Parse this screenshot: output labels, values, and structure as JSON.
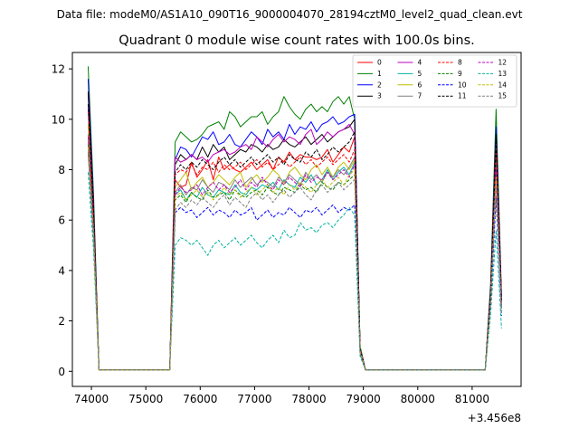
{
  "chart_data": {
    "type": "line",
    "suptitle": "Data file: modeM0/AS1A10_090T16_9000004070_28194cztM0_level2_quad_clean.evt",
    "title": "Quadrant 0 module wise count rates with 100.0s bins.",
    "xlabel": "",
    "ylabel": "",
    "x_offset_label": "+3.456e8",
    "xlim": [
      73650,
      81900
    ],
    "ylim": [
      -0.6,
      12.65
    ],
    "x_ticks": [
      74000,
      75000,
      76000,
      77000,
      78000,
      79000,
      80000,
      81000
    ],
    "x_tick_labels": [
      "74000",
      "75000",
      "76000",
      "77000",
      "78000",
      "79000",
      "80000",
      "81000"
    ],
    "y_ticks": [
      0,
      2,
      4,
      6,
      8,
      10,
      12
    ],
    "y_tick_labels": [
      "0",
      "2",
      "4",
      "6",
      "8",
      "10",
      "12"
    ],
    "legend_position": "top-right",
    "grid": false,
    "segments_x": [
      [
        73940,
        74040,
        74140
      ],
      [
        75440,
        75540,
        75640,
        75740,
        75840,
        75940,
        76040,
        76140,
        76240,
        76340,
        76440,
        76540,
        76640,
        76740,
        76840,
        76940,
        77040,
        77140,
        77240,
        77340,
        77440,
        77540,
        77640,
        77740,
        77840,
        77940,
        78040,
        78140,
        78240,
        78340,
        78440,
        78540,
        78640,
        78740,
        78840
      ],
      [
        78940,
        79040
      ],
      [
        81240,
        81340,
        81440,
        81540
      ]
    ],
    "gaps_zero": [
      [
        74140,
        75440
      ],
      [
        79040,
        81240
      ]
    ],
    "series": [
      {
        "name": "0",
        "color": "#ff0000",
        "dash": "solid",
        "values": [
          [
            11.0,
            6.5,
            0.05
          ],
          [
            0.05,
            7.6,
            7.3,
            7.4,
            8.3,
            7.7,
            8.0,
            8.4,
            7.6,
            8.5,
            8.0,
            8.2,
            8.0,
            7.9,
            8.1,
            8.3,
            8.0,
            8.2,
            8.4,
            8.0,
            8.5,
            8.3,
            8.7,
            8.4,
            8.6,
            8.5,
            8.5,
            8.4,
            8.5,
            8.8,
            8.3,
            8.6,
            8.9,
            8.7,
            9.3
          ],
          [
            0.9,
            0.05
          ],
          [
            0.05,
            3.2,
            9.0,
            2.8
          ]
        ]
      },
      {
        "name": "1",
        "color": "#008000",
        "dash": "solid",
        "values": [
          [
            12.1,
            7.0,
            0.05
          ],
          [
            0.05,
            9.1,
            9.5,
            9.3,
            9.1,
            9.2,
            9.4,
            9.7,
            9.8,
            9.9,
            9.6,
            10.3,
            10.1,
            9.7,
            9.9,
            10.1,
            10.1,
            10.3,
            9.8,
            10.1,
            10.3,
            10.9,
            10.5,
            10.2,
            10.0,
            10.4,
            10.6,
            10.3,
            10.5,
            10.3,
            10.7,
            10.9,
            10.6,
            10.9,
            10.0
          ],
          [
            1.0,
            0.05
          ],
          [
            0.05,
            3.5,
            10.4,
            3.0
          ]
        ]
      },
      {
        "name": "2",
        "color": "#0000ff",
        "dash": "solid",
        "values": [
          [
            11.6,
            6.6,
            0.05
          ],
          [
            0.05,
            8.4,
            8.9,
            8.8,
            8.5,
            8.9,
            9.3,
            9.2,
            9.5,
            9.0,
            9.1,
            9.4,
            9.0,
            8.9,
            9.2,
            9.5,
            9.3,
            9.0,
            9.6,
            9.3,
            9.5,
            9.2,
            9.8,
            9.4,
            9.7,
            9.6,
            9.9,
            9.5,
            9.8,
            9.9,
            10.1,
            9.8,
            9.9,
            10.1,
            10.2
          ],
          [
            0.9,
            0.05
          ],
          [
            0.05,
            3.3,
            9.7,
            2.9
          ]
        ]
      },
      {
        "name": "3",
        "color": "#000000",
        "dash": "solid",
        "values": [
          [
            11.1,
            6.4,
            0.05
          ],
          [
            0.05,
            8.2,
            8.6,
            8.4,
            8.6,
            8.4,
            8.9,
            8.5,
            9.0,
            8.7,
            8.9,
            8.4,
            8.6,
            8.8,
            8.7,
            9.0,
            8.9,
            8.7,
            9.0,
            8.8,
            8.9,
            9.2,
            9.0,
            8.9,
            9.1,
            9.3,
            9.0,
            9.2,
            9.4,
            9.1,
            9.3,
            9.5,
            9.6,
            9.7,
            10.0
          ],
          [
            0.9,
            0.05
          ],
          [
            0.05,
            3.2,
            9.4,
            2.8
          ]
        ]
      },
      {
        "name": "4",
        "color": "#bf00bf",
        "dash": "solid",
        "values": [
          [
            10.5,
            6.2,
            0.05
          ],
          [
            0.05,
            8.5,
            8.3,
            8.4,
            8.6,
            8.4,
            8.5,
            8.3,
            8.6,
            8.7,
            8.8,
            8.6,
            8.7,
            8.9,
            9.0,
            8.8,
            9.3,
            9.1,
            8.9,
            9.2,
            9.4,
            9.1,
            9.3,
            9.2,
            9.0,
            9.4,
            9.6,
            9.0,
            9.2,
            9.5,
            9.3,
            9.5,
            9.6,
            9.8,
            9.4
          ],
          [
            0.9,
            0.05
          ],
          [
            0.05,
            3.0,
            9.0,
            2.7
          ]
        ]
      },
      {
        "name": "5",
        "color": "#00b3a1",
        "dash": "solid",
        "values": [
          [
            9.2,
            5.7,
            0.05
          ],
          [
            0.05,
            7.0,
            7.2,
            6.8,
            7.1,
            6.9,
            7.3,
            7.0,
            6.9,
            7.2,
            7.1,
            7.0,
            7.4,
            7.1,
            7.0,
            7.3,
            7.2,
            7.4,
            7.3,
            7.5,
            7.2,
            7.6,
            7.4,
            7.3,
            7.7,
            7.5,
            7.8,
            7.4,
            7.6,
            8.0,
            7.6,
            7.9,
            8.1,
            7.8,
            8.3
          ],
          [
            0.8,
            0.05
          ],
          [
            0.05,
            2.9,
            8.0,
            2.5
          ]
        ]
      },
      {
        "name": "6",
        "color": "#bfbf00",
        "dash": "solid",
        "values": [
          [
            9.8,
            5.9,
            0.05
          ],
          [
            0.05,
            7.3,
            7.6,
            7.9,
            7.2,
            7.5,
            7.7,
            7.3,
            7.5,
            7.8,
            7.6,
            7.4,
            7.7,
            7.9,
            7.3,
            7.6,
            7.8,
            7.5,
            7.7,
            8.0,
            7.8,
            7.4,
            7.9,
            8.1,
            7.8,
            7.6,
            8.0,
            8.2,
            7.8,
            8.1,
            7.7,
            8.1,
            8.3,
            8.0,
            8.4
          ],
          [
            0.8,
            0.05
          ],
          [
            0.05,
            3.0,
            8.7,
            2.6
          ]
        ]
      },
      {
        "name": "7",
        "color": "#808080",
        "dash": "solid",
        "values": [
          [
            9.4,
            5.8,
            0.05
          ],
          [
            0.05,
            7.1,
            7.4,
            7.0,
            7.3,
            7.2,
            7.6,
            7.3,
            7.1,
            7.5,
            7.4,
            7.2,
            7.6,
            7.3,
            7.5,
            7.7,
            7.4,
            7.6,
            7.5,
            7.3,
            7.7,
            7.5,
            7.8,
            7.6,
            7.4,
            7.9,
            7.6,
            7.8,
            7.5,
            7.9,
            7.7,
            8.0,
            7.8,
            8.1,
            8.5
          ],
          [
            0.8,
            0.05
          ],
          [
            0.05,
            2.9,
            8.3,
            2.5
          ]
        ]
      },
      {
        "name": "8",
        "color": "#ff0000",
        "dash": "dashed",
        "values": [
          [
            10.3,
            6.1,
            0.05
          ],
          [
            0.05,
            7.8,
            8.0,
            7.9,
            8.2,
            7.8,
            8.1,
            8.0,
            8.3,
            7.9,
            8.2,
            8.0,
            8.1,
            8.3,
            8.0,
            8.2,
            8.4,
            8.1,
            8.3,
            8.0,
            8.2,
            8.4,
            8.1,
            8.3,
            8.5,
            8.2,
            8.4,
            8.1,
            8.3,
            8.5,
            8.2,
            8.4,
            8.6,
            8.3,
            8.8
          ],
          [
            0.9,
            0.05
          ],
          [
            0.05,
            3.1,
            8.8,
            2.7
          ]
        ]
      },
      {
        "name": "9",
        "color": "#008000",
        "dash": "dashed",
        "values": [
          [
            9.0,
            5.6,
            0.05
          ],
          [
            0.05,
            6.8,
            7.0,
            6.7,
            7.1,
            6.9,
            6.8,
            7.2,
            6.9,
            7.0,
            7.1,
            6.8,
            7.2,
            7.0,
            6.9,
            7.1,
            7.2,
            7.0,
            7.3,
            7.1,
            7.0,
            7.3,
            7.2,
            7.1,
            7.4,
            7.2,
            7.3,
            7.1,
            7.5,
            7.3,
            7.2,
            7.5,
            7.4,
            7.6,
            7.8
          ],
          [
            0.8,
            0.05
          ],
          [
            0.05,
            2.8,
            7.6,
            2.4
          ]
        ]
      },
      {
        "name": "10",
        "color": "#0000ff",
        "dash": "dashed",
        "values": [
          [
            8.7,
            5.3,
            0.05
          ],
          [
            0.05,
            6.3,
            6.5,
            6.3,
            6.4,
            6.1,
            6.3,
            6.5,
            6.2,
            6.4,
            6.3,
            6.1,
            6.4,
            6.2,
            6.3,
            6.5,
            6.0,
            6.2,
            6.4,
            6.1,
            6.3,
            6.2,
            6.5,
            6.3,
            6.1,
            6.4,
            6.3,
            6.5,
            6.2,
            6.4,
            6.6,
            6.3,
            6.5,
            6.4,
            6.6
          ],
          [
            0.7,
            0.05
          ],
          [
            0.05,
            2.6,
            6.9,
            2.2
          ]
        ]
      },
      {
        "name": "11",
        "color": "#000000",
        "dash": "dashed",
        "values": [
          [
            10.6,
            6.2,
            0.05
          ],
          [
            0.05,
            7.9,
            8.2,
            8.0,
            8.3,
            8.1,
            8.4,
            8.2,
            8.0,
            8.3,
            8.5,
            8.2,
            8.4,
            8.1,
            8.3,
            8.5,
            8.2,
            8.4,
            8.6,
            8.3,
            8.5,
            8.2,
            8.6,
            8.4,
            8.3,
            8.7,
            8.5,
            8.8,
            8.4,
            8.6,
            8.9,
            8.7,
            8.9,
            9.1,
            9.5
          ],
          [
            0.9,
            0.05
          ],
          [
            0.05,
            3.1,
            9.1,
            2.8
          ]
        ]
      },
      {
        "name": "12",
        "color": "#bf00bf",
        "dash": "dashed",
        "values": [
          [
            9.3,
            5.7,
            0.05
          ],
          [
            0.05,
            7.0,
            7.3,
            7.1,
            7.2,
            7.4,
            7.0,
            7.3,
            7.5,
            7.2,
            7.4,
            7.1,
            7.3,
            7.6,
            7.2,
            7.5,
            7.3,
            7.7,
            7.4,
            7.2,
            7.6,
            7.4,
            7.7,
            7.5,
            7.3,
            7.8,
            7.5,
            7.7,
            7.6,
            7.9,
            7.6,
            7.8,
            8.0,
            7.7,
            8.2
          ],
          [
            0.8,
            0.05
          ],
          [
            0.05,
            2.9,
            8.0,
            2.5
          ]
        ]
      },
      {
        "name": "13",
        "color": "#00b3a1",
        "dash": "dashed",
        "values": [
          [
            7.9,
            4.8,
            0.05
          ],
          [
            0.05,
            5.0,
            5.3,
            5.2,
            5.0,
            5.2,
            4.9,
            4.6,
            5.0,
            5.2,
            4.9,
            5.1,
            5.3,
            5.0,
            5.2,
            5.4,
            5.1,
            4.9,
            5.2,
            5.4,
            5.1,
            5.6,
            5.3,
            5.4,
            5.9,
            5.6,
            5.7,
            5.5,
            5.8,
            5.9,
            5.7,
            6.0,
            6.2,
            6.5,
            6.2
          ],
          [
            0.6,
            0.05
          ],
          [
            0.05,
            2.3,
            5.6,
            1.7
          ]
        ]
      },
      {
        "name": "14",
        "color": "#bfbf00",
        "dash": "dashed",
        "values": [
          [
            8.9,
            5.5,
            0.05
          ],
          [
            0.05,
            6.9,
            7.1,
            6.8,
            7.0,
            7.2,
            6.9,
            7.1,
            6.8,
            7.0,
            7.3,
            7.0,
            7.2,
            6.9,
            7.1,
            7.3,
            7.0,
            7.2,
            7.4,
            7.1,
            7.3,
            7.0,
            7.4,
            7.2,
            7.5,
            7.3,
            7.1,
            7.4,
            7.6,
            7.3,
            7.5,
            7.7,
            7.4,
            7.8,
            8.0
          ],
          [
            0.8,
            0.05
          ],
          [
            0.05,
            2.8,
            7.7,
            2.4
          ]
        ]
      },
      {
        "name": "15",
        "color": "#808080",
        "dash": "dashed",
        "values": [
          [
            8.6,
            5.3,
            0.05
          ],
          [
            0.05,
            6.4,
            6.7,
            6.5,
            6.8,
            6.6,
            6.9,
            6.7,
            6.5,
            6.8,
            7.0,
            6.6,
            6.9,
            6.7,
            6.5,
            6.9,
            7.1,
            6.8,
            7.0,
            6.7,
            7.0,
            7.2,
            6.9,
            7.1,
            7.3,
            7.0,
            6.8,
            7.2,
            7.4,
            7.1,
            7.3,
            7.5,
            7.2,
            7.4,
            7.6
          ],
          [
            0.7,
            0.05
          ],
          [
            0.05,
            2.7,
            7.3,
            2.3
          ]
        ]
      }
    ]
  }
}
